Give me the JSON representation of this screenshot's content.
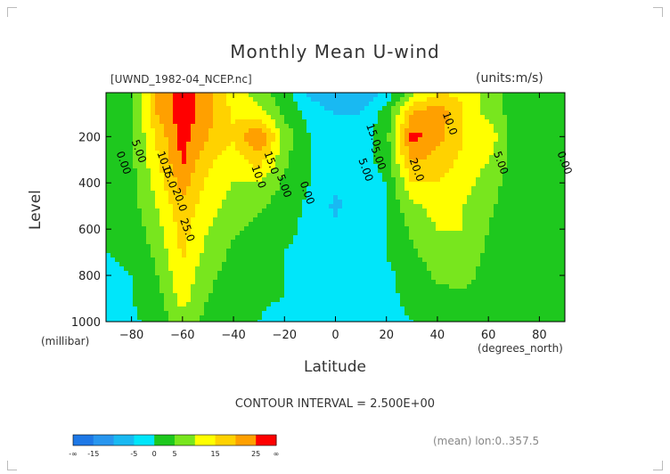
{
  "page": {
    "title": "Monthly Mean U-wind",
    "file_label": "[UWND_1982-04_NCEP.nc]",
    "units_label": "(units:m/s)",
    "contour_interval_text": "CONTOUR INTERVAL = 2.500E+00",
    "footer_note": "(mean) lon:0..357.5"
  },
  "chart_data": {
    "type": "heatmap",
    "title": "Monthly Mean U-wind",
    "xlabel": "Latitude",
    "ylabel": "Level",
    "x_unit_label": "(degrees_north)",
    "y_unit_label": "(millibar)",
    "xlim": [
      -90,
      90
    ],
    "ylim": [
      1000,
      10
    ],
    "x_ticks": [
      -80,
      -60,
      -40,
      -20,
      0,
      20,
      40,
      60,
      80
    ],
    "y_ticks": [
      200,
      400,
      600,
      800,
      1000
    ],
    "contour_interval": 2.5,
    "levels_mb": [
      10,
      100,
      200,
      300,
      400,
      500,
      600,
      700,
      800,
      900,
      1000
    ],
    "latitudes": [
      -90,
      -80,
      -70,
      -60,
      -50,
      -40,
      -30,
      -20,
      -10,
      0,
      10,
      20,
      30,
      40,
      50,
      60,
      70,
      80,
      90
    ],
    "values": [
      [
        0,
        5,
        20,
        28,
        22,
        12,
        8,
        2,
        -6,
        -10,
        -10,
        -3,
        8,
        15,
        14,
        8,
        3,
        0,
        0
      ],
      [
        0,
        5,
        20,
        28,
        22,
        14,
        12,
        4,
        -2,
        -5,
        -5,
        2,
        20,
        24,
        15,
        8,
        3,
        0,
        0
      ],
      [
        0,
        4,
        16,
        27,
        20,
        16,
        26,
        8,
        0,
        -2,
        -2,
        3,
        27,
        22,
        15,
        14,
        3,
        0,
        0
      ],
      [
        0,
        4,
        14,
        26,
        16,
        12,
        18,
        6,
        0,
        -2,
        -2,
        2,
        21,
        18,
        14,
        10,
        3,
        0,
        0
      ],
      [
        0,
        3,
        12,
        22,
        14,
        10,
        10,
        4,
        0,
        -4,
        -2,
        0,
        15,
        15,
        12,
        8,
        2,
        0,
        0
      ],
      [
        0,
        3,
        10,
        19,
        12,
        8,
        6,
        2,
        -1,
        -6,
        -2,
        0,
        9,
        12,
        10,
        6,
        2,
        0,
        0
      ],
      [
        0,
        2,
        8,
        17,
        10,
        6,
        3,
        1,
        -1,
        -4,
        -1,
        0,
        6,
        10,
        10,
        5,
        1,
        0,
        0
      ],
      [
        0,
        1,
        6,
        16,
        8,
        4,
        2,
        0,
        -1,
        -2,
        -1,
        0,
        4,
        8,
        8,
        4,
        1,
        0,
        0
      ],
      [
        -1,
        0,
        5,
        14,
        6,
        3,
        1,
        0,
        -1,
        -1,
        -1,
        -1,
        2,
        6,
        7,
        3,
        1,
        0,
        0
      ],
      [
        -2,
        0,
        3,
        12,
        5,
        2,
        1,
        0,
        -1,
        -1,
        -1,
        -1,
        1,
        3,
        4,
        2,
        0,
        0,
        0
      ],
      [
        -2,
        -1,
        2,
        8,
        3,
        1,
        0,
        -3,
        -4,
        -2,
        0,
        -1,
        0,
        2,
        2,
        1,
        0,
        0,
        0
      ]
    ],
    "contour_labels": [
      "0.00",
      "5.00",
      "10.0",
      "15.0",
      "20.0",
      "25.0",
      "15.0",
      "10.0",
      "5.00",
      "0.00",
      "5.00",
      "5.00",
      "15.0",
      "20.0",
      "10.0",
      "5.00",
      "0.00"
    ],
    "colorbar": {
      "bounds_labels": [
        "-∞",
        "-15",
        "-5",
        "0",
        "5",
        "15",
        "25",
        "∞"
      ],
      "colors": [
        "#1e78e6",
        "#2896ef",
        "#19b9f2",
        "#00e6fa",
        "#1ec81e",
        "#78e61e",
        "#ffff00",
        "#ffd200",
        "#ffa000",
        "#ff0000"
      ],
      "class_edges": [
        -999,
        -15,
        -10,
        -5,
        0,
        5,
        10,
        15,
        20,
        25,
        999
      ]
    },
    "grid": false,
    "legend": "bottom"
  }
}
